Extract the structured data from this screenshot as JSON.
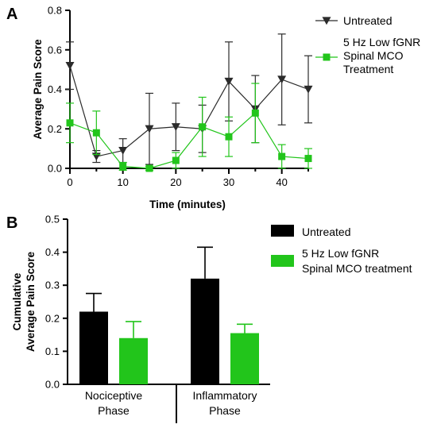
{
  "chart_data": [
    {
      "panel": "A",
      "type": "line",
      "xlabel": "Time (minutes)",
      "ylabel": "Average Pain Score",
      "xlim": [
        0,
        45
      ],
      "ylim": [
        0,
        0.8
      ],
      "xticks": [
        0,
        10,
        20,
        30,
        40
      ],
      "yticks": [
        0.0,
        0.2,
        0.4,
        0.6,
        0.8
      ],
      "ytick_labels": [
        "0.0",
        "0.2",
        "0.4",
        "0.6",
        "0.8"
      ],
      "legend_position": "right",
      "x": [
        0,
        5,
        10,
        15,
        20,
        25,
        30,
        35,
        40,
        45
      ],
      "series": [
        {
          "name": "Untreated",
          "legend_lines": [
            "Untreated"
          ],
          "color": "#2b2b2b",
          "marker": "triangle-down",
          "values": [
            0.52,
            0.06,
            0.09,
            0.2,
            0.21,
            0.2,
            0.44,
            0.3,
            0.45,
            0.4
          ],
          "errors": [
            0.12,
            0.03,
            0.06,
            0.18,
            0.12,
            0.12,
            0.2,
            0.17,
            0.23,
            0.17
          ]
        },
        {
          "name": "5 Hz Low fGNR Spinal MCO Treatment",
          "legend_lines": [
            "5 Hz Low fGNR",
            "Spinal MCO",
            "Treatment"
          ],
          "color": "#22c51b",
          "marker": "square",
          "values": [
            0.23,
            0.18,
            0.01,
            0.0,
            0.04,
            0.21,
            0.16,
            0.28,
            0.06,
            0.05
          ],
          "errors": [
            0.1,
            0.11,
            0.02,
            0.01,
            0.04,
            0.15,
            0.1,
            0.15,
            0.06,
            0.05
          ]
        }
      ]
    },
    {
      "panel": "B",
      "type": "bar",
      "ylabel_lines": [
        "Cumulative",
        "Average Pain Score"
      ],
      "ylim": [
        0,
        0.5
      ],
      "yticks": [
        0.0,
        0.1,
        0.2,
        0.3,
        0.4,
        0.5
      ],
      "ytick_labels": [
        "0.0",
        "0.1",
        "0.2",
        "0.3",
        "0.4",
        "0.5"
      ],
      "legend_position": "right",
      "categories": [
        {
          "name": "Nociceptive Phase",
          "label_lines": [
            "Nociceptive",
            "Phase"
          ]
        },
        {
          "name": "Inflammatory Phase",
          "label_lines": [
            "Inflammatory",
            "Phase"
          ]
        }
      ],
      "series": [
        {
          "name": "Untreated",
          "legend_lines": [
            "Untreated"
          ],
          "color": "#000000",
          "values": [
            0.22,
            0.32
          ],
          "errors": [
            0.055,
            0.095
          ]
        },
        {
          "name": "5 Hz Low fGNR Spinal MCO treatment",
          "legend_lines": [
            "5 Hz Low fGNR",
            "Spinal MCO treatment"
          ],
          "color": "#22c51b",
          "values": [
            0.14,
            0.155
          ],
          "errors": [
            0.05,
            0.027
          ]
        }
      ]
    }
  ]
}
